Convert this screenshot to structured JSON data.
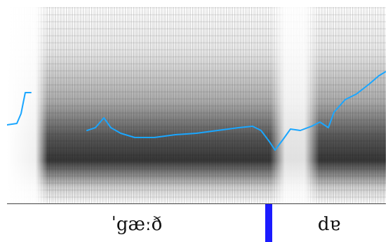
{
  "transcription": {
    "segments": [
      {
        "text": "ˈgæːð"
      },
      {
        "text": "dɐ"
      }
    ]
  },
  "style": {
    "pitch_color": "#1aa6ff",
    "boundary_color": "#1b1bff"
  }
}
